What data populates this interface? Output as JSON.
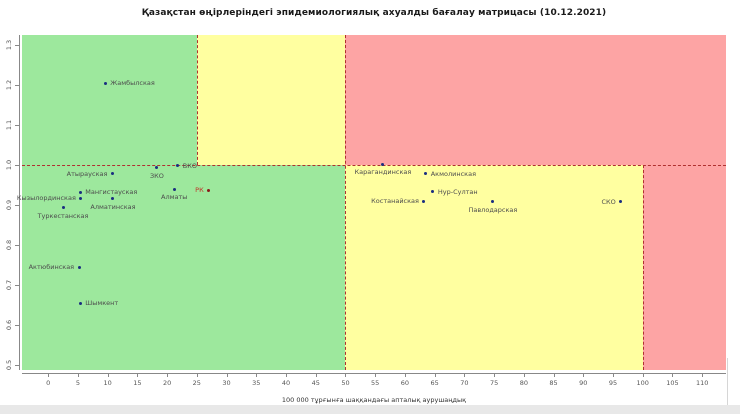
{
  "chart_data": {
    "type": "scatter",
    "title": "Қазақстан өңірлеріндегі эпидемиологиялық ахуалды бағалау матрицасы  (10.12.2021)",
    "xlabel": "100 000 тұрғынға шаққандағы апталық аурушаңдық",
    "ylabel": "",
    "xlim": [
      -4.4,
      114
    ],
    "ylim": [
      0.4875,
      1.325
    ],
    "x_ticks": [
      0,
      5,
      10,
      15,
      20,
      25,
      30,
      35,
      40,
      45,
      50,
      55,
      60,
      65,
      70,
      75,
      80,
      85,
      90,
      95,
      100,
      105,
      110
    ],
    "y_ticks": [
      "0.5",
      "0.6",
      "0.7",
      "0.8",
      "0.9",
      "1.0",
      "1.1",
      "1.2",
      "1.3"
    ],
    "y_tick_values": [
      0.5,
      0.6,
      0.7,
      0.8,
      0.9,
      1.0,
      1.1,
      1.2,
      1.3
    ],
    "grid": false,
    "legend": null,
    "colors": {
      "green": "#9de89d",
      "yellow": "#ffffa0",
      "red": "#fda4a4",
      "dash": "#b03030",
      "point": "#1a2e80",
      "label": "#4d4d4d",
      "highlight_point": "#8b1a1a",
      "highlight_label": "#c03028",
      "axis": "#888888",
      "tick_text": "#555555"
    },
    "regions": [
      {
        "zone": "green-top-left",
        "color_key": "green",
        "x0": -4.4,
        "x1": 25,
        "y0": 1.0,
        "y1": 1.325
      },
      {
        "zone": "yellow-top-mid",
        "color_key": "yellow",
        "x0": 25,
        "x1": 50,
        "y0": 1.0,
        "y1": 1.325
      },
      {
        "zone": "red-top-right",
        "color_key": "red",
        "x0": 50,
        "x1": 114,
        "y0": 1.0,
        "y1": 1.325
      },
      {
        "zone": "green-bottom-left",
        "color_key": "green",
        "x0": -4.4,
        "x1": 50,
        "y0": 0.4875,
        "y1": 1.0
      },
      {
        "zone": "yellow-bottom-mid",
        "color_key": "yellow",
        "x0": 50,
        "x1": 100,
        "y0": 0.4875,
        "y1": 1.0
      },
      {
        "zone": "red-bottom-right",
        "color_key": "red",
        "x0": 100,
        "x1": 114,
        "y0": 0.4875,
        "y1": 1.0
      }
    ],
    "threshold_lines": [
      {
        "orient": "h",
        "at": 1.0,
        "from": -4.4,
        "to": 114
      },
      {
        "orient": "v",
        "at": 25,
        "from": 1.0,
        "to": 1.325
      },
      {
        "orient": "v",
        "at": 50,
        "from": 0.4875,
        "to": 1.325
      },
      {
        "orient": "v",
        "at": 100,
        "from": 0.4875,
        "to": 1.0
      }
    ],
    "points": [
      {
        "name": "Жамбылская",
        "x": 9.6,
        "y": 1.205,
        "label_pos": "right",
        "highlight": false
      },
      {
        "name": "Атырауская",
        "x": 10.8,
        "y": 0.978,
        "label_pos": "left",
        "highlight": false
      },
      {
        "name": "ЗКО",
        "x": 18.3,
        "y": 0.993,
        "label_pos": "below",
        "highlight": false
      },
      {
        "name": "ВКО",
        "x": 21.8,
        "y": 0.998,
        "label_pos": "right",
        "highlight": false
      },
      {
        "name": "РК",
        "x": 27.0,
        "y": 0.937,
        "label_pos": "left",
        "highlight": true
      },
      {
        "name": "Алматы",
        "x": 21.2,
        "y": 0.94,
        "label_pos": "below",
        "highlight": false
      },
      {
        "name": "Мангистауская",
        "x": 5.4,
        "y": 0.932,
        "label_pos": "right",
        "highlight": false
      },
      {
        "name": "Кызылординская",
        "x": 5.5,
        "y": 0.917,
        "label_pos": "left",
        "highlight": false
      },
      {
        "name": "Алматинская",
        "x": 10.9,
        "y": 0.916,
        "label_pos": "below",
        "highlight": false
      },
      {
        "name": "Туркестанская",
        "x": 2.5,
        "y": 0.893,
        "label_pos": "below",
        "highlight": false
      },
      {
        "name": "Актюбинская",
        "x": 5.2,
        "y": 0.745,
        "label_pos": "left",
        "highlight": false
      },
      {
        "name": "Шымкент",
        "x": 5.4,
        "y": 0.655,
        "label_pos": "right",
        "highlight": false
      },
      {
        "name": "Карагандинская",
        "x": 56.3,
        "y": 1.002,
        "label_pos": "below",
        "highlight": false
      },
      {
        "name": "Акмолинская",
        "x": 63.5,
        "y": 0.978,
        "label_pos": "right",
        "highlight": false
      },
      {
        "name": "Нур-Султан",
        "x": 64.7,
        "y": 0.933,
        "label_pos": "right",
        "highlight": false
      },
      {
        "name": "Костанайская",
        "x": 63.2,
        "y": 0.91,
        "label_pos": "left",
        "highlight": false
      },
      {
        "name": "Павлодарская",
        "x": 74.8,
        "y": 0.908,
        "label_pos": "below",
        "highlight": false
      },
      {
        "name": "СКО",
        "x": 96.3,
        "y": 0.908,
        "label_pos": "left",
        "highlight": false
      }
    ]
  }
}
